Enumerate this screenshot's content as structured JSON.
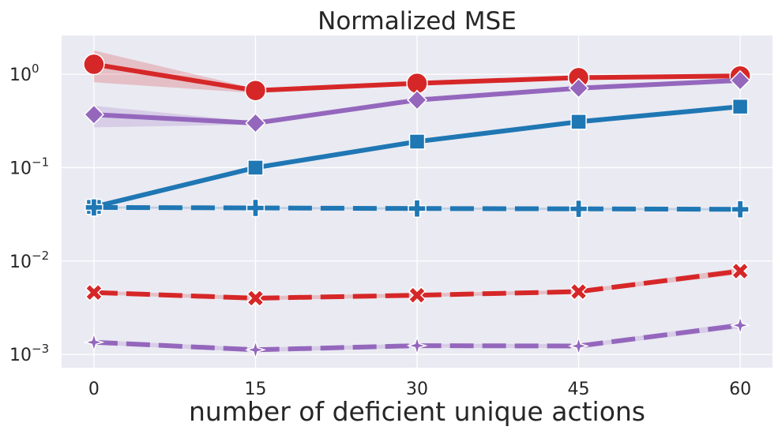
{
  "chart_data": {
    "type": "line",
    "title": "Normalized MSE",
    "xlabel": "number of deficient unique actions",
    "ylabel": "",
    "x": [
      0,
      15,
      30,
      45,
      60
    ],
    "x_ticks": [
      "0",
      "15",
      "30",
      "45",
      "60"
    ],
    "xlim": [
      -3,
      63
    ],
    "y_scale": "log",
    "ylim": [
      0.00072,
      2.6
    ],
    "y_ticks": [
      {
        "value": 1,
        "base": "10",
        "exp": "0"
      },
      {
        "value": 0.1,
        "base": "10",
        "exp": "−1"
      },
      {
        "value": 0.01,
        "base": "10",
        "exp": "−2"
      },
      {
        "value": 0.001,
        "base": "10",
        "exp": "−3"
      }
    ],
    "grid": true,
    "background": "#EAEAF2",
    "series": [
      {
        "color": "#d62728",
        "linestyle": "solid",
        "marker": "circle",
        "values": [
          1.28,
          0.67,
          0.8,
          0.92,
          0.96
        ],
        "band_low": [
          0.82,
          0.63,
          0.76,
          0.88,
          0.92
        ],
        "band_high": [
          1.8,
          0.7,
          0.84,
          0.96,
          1.0
        ]
      },
      {
        "color": "#9467bd",
        "linestyle": "solid",
        "marker": "diamond",
        "values": [
          0.37,
          0.3,
          0.53,
          0.71,
          0.86
        ],
        "band_low": [
          0.27,
          0.29,
          0.51,
          0.69,
          0.84
        ],
        "band_high": [
          0.46,
          0.31,
          0.55,
          0.73,
          0.88
        ]
      },
      {
        "color": "#1f77b4",
        "linestyle": "solid",
        "marker": "square",
        "values": [
          0.038,
          0.1,
          0.19,
          0.31,
          0.45
        ],
        "band_low": [
          0.037,
          0.099,
          0.188,
          0.305,
          0.445
        ],
        "band_high": [
          0.039,
          0.101,
          0.192,
          0.315,
          0.455
        ]
      },
      {
        "color": "#1f77b4",
        "linestyle": "dashed",
        "marker": "plus",
        "values": [
          0.0375,
          0.037,
          0.0365,
          0.0362,
          0.0358
        ],
        "band_low": [
          0.0365,
          0.036,
          0.0355,
          0.0352,
          0.0348
        ],
        "band_high": [
          0.0385,
          0.038,
          0.0375,
          0.0372,
          0.0368
        ]
      },
      {
        "color": "#d62728",
        "linestyle": "dashed",
        "marker": "x",
        "values": [
          0.0046,
          0.004,
          0.0043,
          0.0047,
          0.0078
        ],
        "band_low": [
          0.0044,
          0.0038,
          0.0041,
          0.0045,
          0.0072
        ],
        "band_high": [
          0.0048,
          0.0042,
          0.0045,
          0.0049,
          0.0084
        ]
      },
      {
        "color": "#9467bd",
        "linestyle": "dashed",
        "marker": "thin_diamond",
        "values": [
          0.00135,
          0.00112,
          0.00124,
          0.00123,
          0.00205
        ],
        "band_low": [
          0.00128,
          0.00106,
          0.00118,
          0.00117,
          0.0019
        ],
        "band_high": [
          0.00142,
          0.00118,
          0.0013,
          0.00129,
          0.0022
        ]
      }
    ]
  }
}
